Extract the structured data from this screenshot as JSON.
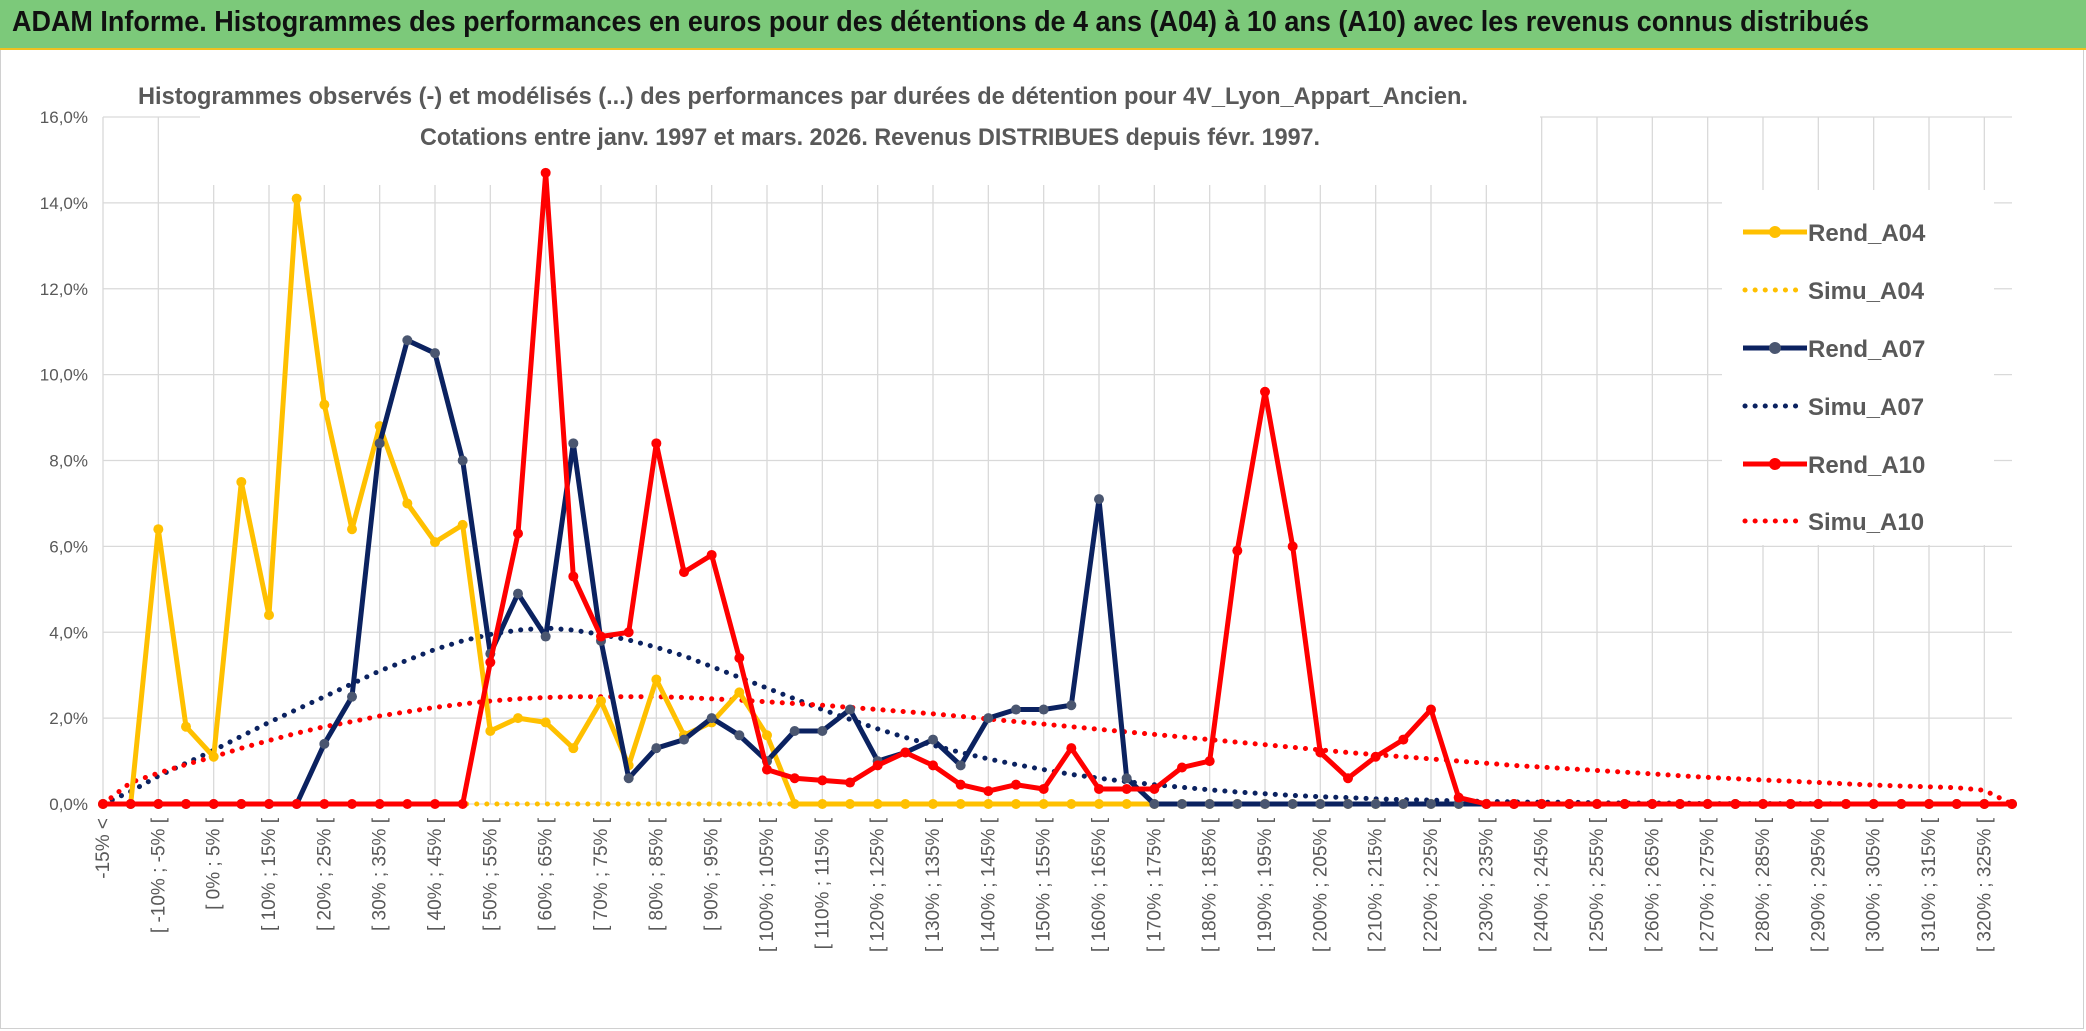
{
  "banner": {
    "title": "ADAM Informe. Histogrammes des performances en euros pour des détentions de 4 ans (A04) à 10 ans (A10) avec les revenus connus distribués"
  },
  "colors": {
    "banner_bg": "#7cc97a",
    "A04": "#ffc000",
    "A07": "#0b2260",
    "A10": "#ff0000",
    "grid": "#d9d9d9",
    "text": "#595959"
  },
  "chart_data": {
    "type": "line",
    "title": "Histogrammes observés (-) et modélisés (...) des performances par durées de détention pour 4V_Lyon_Appart_Ancien.",
    "subtitle": "Cotations entre janv. 1997 et mars. 2026. Revenus DISTRIBUES depuis févr. 1997.",
    "xlabel": "",
    "ylabel": "",
    "ylim": [
      0,
      16
    ],
    "y_ticks": [
      "0,0%",
      "2,0%",
      "4,0%",
      "6,0%",
      "8,0%",
      "10,0%",
      "12,0%",
      "14,0%",
      "16,0%"
    ],
    "grid": true,
    "legend_position": "right",
    "x_tick_labels": [
      "-15% <",
      "[ -10% ; -5% [",
      "[ 0% ; 5% [",
      "[ 10% ; 15% [",
      "[ 20% ; 25% [",
      "[ 30% ; 35% [",
      "[ 40% ; 45% [",
      "[ 50% ; 55% [",
      "[ 60% ; 65% [",
      "[ 70% ; 75% [",
      "[ 80% ; 85% [",
      "[ 90% ; 95% [",
      "[ 100% ; 105% [",
      "[ 110% ; 115% [",
      "[ 120% ; 125% [",
      "[ 130% ; 135% [",
      "[ 140% ; 145% [",
      "[ 150% ; 155% [",
      "[ 160% ; 165% [",
      "[ 170% ; 175% [",
      "[ 180% ; 185% [",
      "[ 190% ; 195% [",
      "[ 200% ; 205% [",
      "[ 210% ; 215% [",
      "[ 220% ; 225% [",
      "[ 230% ; 235% [",
      "[ 240% ; 245% [",
      "[ 250% ; 255% [",
      "[ 260% ; 265% [",
      "[ 270% ; 275% [",
      "[ 280% ; 285% [",
      "[ 290% ; 295% [",
      "[ 300% ; 305% [",
      "[ 310% ; 315% [",
      "[ 320% ; 325% ["
    ],
    "series": [
      {
        "name": "Rend_A04",
        "style": "solid",
        "color": "#ffc000",
        "values": [
          0,
          0,
          6.4,
          1.8,
          1.1,
          7.5,
          4.4,
          14.1,
          9.3,
          6.4,
          8.8,
          7.0,
          6.1,
          6.5,
          1.7,
          2.0,
          1.9,
          1.3,
          2.4,
          0.9,
          2.9,
          1.6,
          1.9,
          2.6,
          1.6,
          0,
          0,
          0,
          0,
          0,
          0,
          0,
          0,
          0,
          0,
          0,
          0,
          0,
          0,
          0,
          0,
          0,
          0,
          0,
          0,
          0,
          0,
          0,
          0,
          0,
          0,
          0,
          0,
          0,
          0,
          0,
          0,
          0,
          0,
          0,
          0,
          0,
          0,
          0,
          0,
          0,
          0,
          0,
          0,
          0
        ]
      },
      {
        "name": "Simu_A04",
        "style": "dotted",
        "color": "#ffc000",
        "values": [
          0,
          0,
          0,
          0,
          0,
          0,
          0,
          0,
          0,
          0,
          0,
          0,
          0,
          0,
          0,
          0,
          0,
          0,
          0,
          0,
          0,
          0,
          0,
          0,
          0,
          0,
          0,
          0,
          0,
          0,
          0,
          0,
          0,
          0,
          0,
          0,
          0,
          0,
          0,
          0,
          0,
          0,
          0,
          0,
          0,
          0,
          0,
          0,
          0,
          0,
          0,
          0,
          0,
          0,
          0,
          0,
          0,
          0,
          0,
          0,
          0,
          0,
          0,
          0,
          0,
          0,
          0,
          0,
          0,
          0
        ]
      },
      {
        "name": "Rend_A07",
        "style": "solid",
        "color": "#0b2260",
        "values": [
          0,
          0,
          0,
          0,
          0,
          0,
          0,
          0,
          1.4,
          2.5,
          8.4,
          10.8,
          10.5,
          8.0,
          3.5,
          4.9,
          3.9,
          8.4,
          3.8,
          0.6,
          1.3,
          1.5,
          2.0,
          1.6,
          1.0,
          1.7,
          1.7,
          2.2,
          1.0,
          1.2,
          1.5,
          0.9,
          2.0,
          2.2,
          2.2,
          2.3,
          7.1,
          0.6,
          0,
          0,
          0,
          0,
          0,
          0,
          0,
          0,
          0,
          0,
          0,
          0,
          0,
          0,
          0,
          0,
          0,
          0,
          0,
          0,
          0,
          0,
          0,
          0,
          0,
          0,
          0,
          0,
          0,
          0,
          0,
          0
        ]
      },
      {
        "name": "Simu_A07",
        "style": "dotted",
        "color": "#0b2260",
        "values": [
          0,
          0.29,
          0.65,
          0.95,
          1.25,
          1.58,
          1.9,
          2.2,
          2.5,
          2.8,
          3.1,
          3.35,
          3.6,
          3.8,
          3.95,
          4.05,
          4.1,
          4.05,
          3.95,
          3.82,
          3.65,
          3.45,
          3.2,
          2.95,
          2.7,
          2.45,
          2.2,
          1.97,
          1.75,
          1.55,
          1.37,
          1.2,
          1.05,
          0.92,
          0.8,
          0.69,
          0.6,
          0.52,
          0.45,
          0.39,
          0.33,
          0.28,
          0.24,
          0.2,
          0.17,
          0.15,
          0.12,
          0.1,
          0.09,
          0.07,
          0.06,
          0.05,
          0.04,
          0.04,
          0.03,
          0.02,
          0.02,
          0.02,
          0.01,
          0.01,
          0.01,
          0.01,
          0.01,
          0,
          0,
          0,
          0,
          0,
          0,
          0
        ]
      },
      {
        "name": "Rend_A10",
        "style": "solid",
        "color": "#ff0000",
        "values": [
          0,
          0,
          0,
          0,
          0,
          0,
          0,
          0,
          0,
          0,
          0,
          0,
          0,
          0,
          3.3,
          6.3,
          14.7,
          5.3,
          3.9,
          4.0,
          8.4,
          5.4,
          5.8,
          3.4,
          0.8,
          0.6,
          0.55,
          0.5,
          0.9,
          1.2,
          0.9,
          0.45,
          0.3,
          0.45,
          0.35,
          1.3,
          0.35,
          0.35,
          0.35,
          0.85,
          1.0,
          5.9,
          9.6,
          6.0,
          1.2,
          0.6,
          1.1,
          1.5,
          2.2,
          0.15,
          0,
          0,
          0,
          0,
          0,
          0,
          0,
          0,
          0,
          0,
          0,
          0,
          0,
          0,
          0,
          0,
          0,
          0,
          0,
          0
        ]
      },
      {
        "name": "Simu_A10",
        "style": "dotted",
        "color": "#ff0000",
        "values": [
          0,
          0.5,
          0.72,
          0.92,
          1.1,
          1.3,
          1.48,
          1.65,
          1.8,
          1.92,
          2.05,
          2.15,
          2.25,
          2.33,
          2.4,
          2.45,
          2.48,
          2.5,
          2.5,
          2.5,
          2.5,
          2.48,
          2.45,
          2.42,
          2.38,
          2.34,
          2.3,
          2.25,
          2.2,
          2.15,
          2.1,
          2.04,
          1.98,
          1.92,
          1.86,
          1.8,
          1.74,
          1.68,
          1.62,
          1.56,
          1.5,
          1.44,
          1.38,
          1.32,
          1.26,
          1.2,
          1.15,
          1.1,
          1.05,
          1.0,
          0.95,
          0.9,
          0.86,
          0.82,
          0.78,
          0.74,
          0.7,
          0.66,
          0.62,
          0.59,
          0.56,
          0.53,
          0.5,
          0.47,
          0.44,
          0.42,
          0.4,
          0.38,
          0.32,
          0
        ]
      }
    ]
  }
}
